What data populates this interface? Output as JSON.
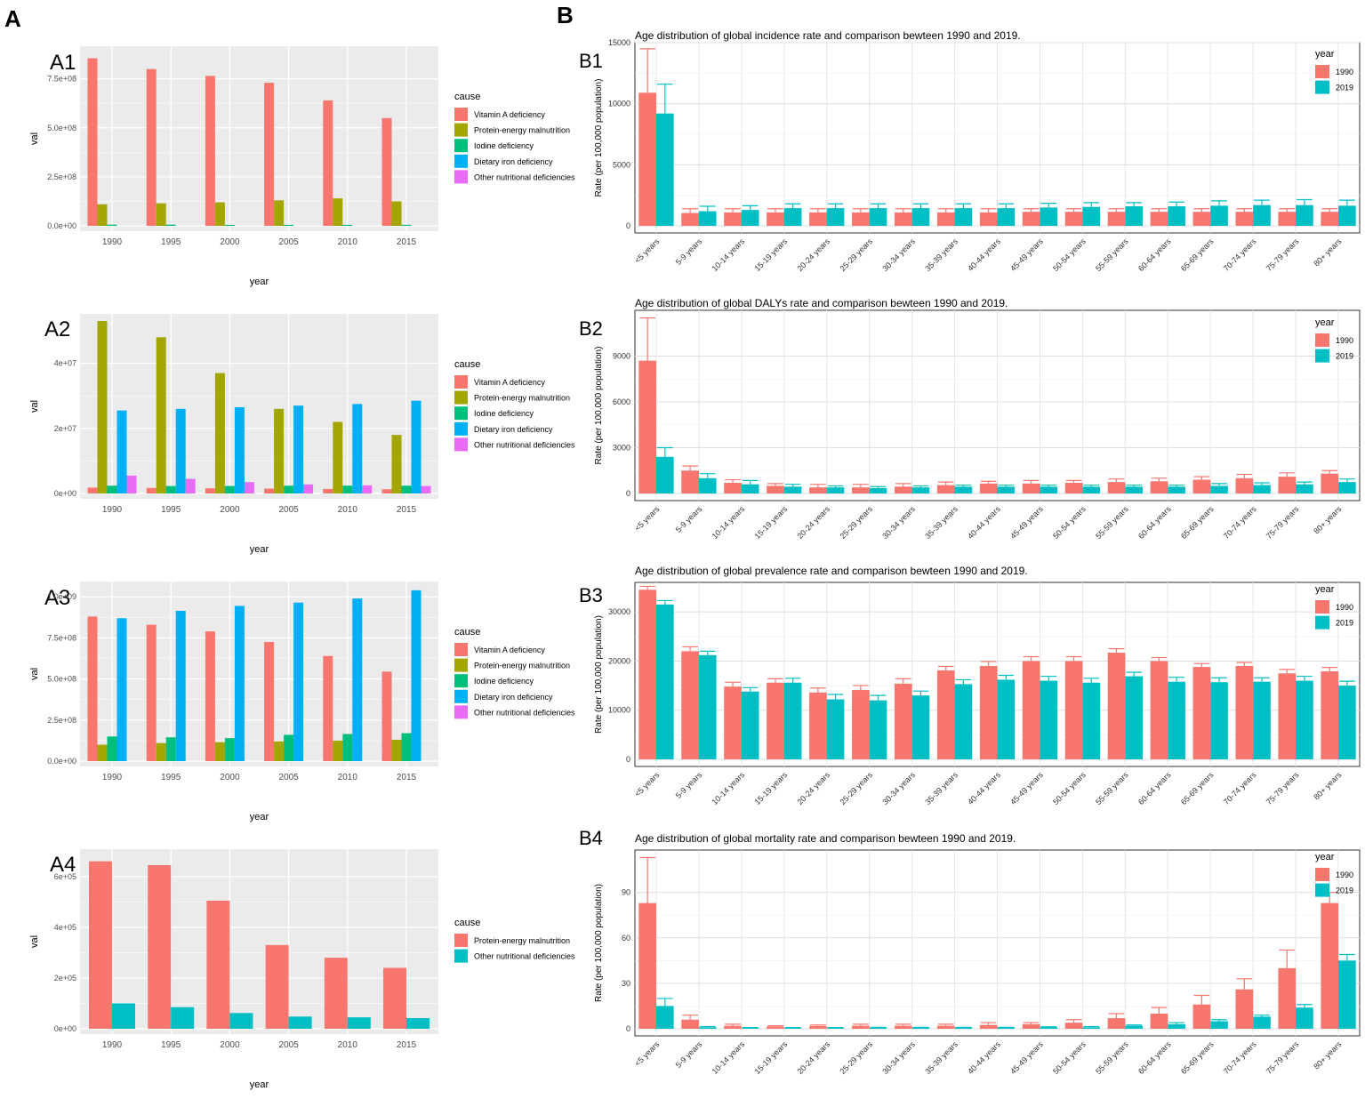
{
  "figure": {
    "label_a": "A",
    "label_b": "B"
  },
  "colors": {
    "vitamin_a": "#F8766D",
    "pem": "#A3A500",
    "iodine": "#00BF7D",
    "iron": "#00B0F6",
    "other": "#E76BF3",
    "y1990": "#F8766D",
    "y2019": "#00BFC4"
  },
  "chart_data": [
    {
      "id": "A1",
      "panel_label": "A1",
      "type": "bar",
      "categories": [
        "1990",
        "1995",
        "2000",
        "2005",
        "2010",
        "2015"
      ],
      "xlabel": "year",
      "ylabel": "val",
      "ylim": [
        0,
        880000000
      ],
      "yticks": [
        0,
        250000000,
        500000000,
        750000000
      ],
      "ytick_labels": [
        "0.0e+00",
        "2.5e+08",
        "5.0e+08",
        "7.5e+08"
      ],
      "legend_title": "cause",
      "legend_items": [
        {
          "label": "Vitamin A deficiency",
          "color": "#F8766D"
        },
        {
          "label": "Protein-energy malnutrition",
          "color": "#A3A500"
        },
        {
          "label": "Iodine deficiency",
          "color": "#00BF7D"
        },
        {
          "label": "Dietary iron deficiency",
          "color": "#00B0F6"
        },
        {
          "label": "Other nutritional deficiencies",
          "color": "#E76BF3"
        }
      ],
      "series": [
        {
          "name": "Vitamin A deficiency",
          "color": "#F8766D",
          "values": [
            855000000,
            800000000,
            765000000,
            730000000,
            640000000,
            550000000
          ]
        },
        {
          "name": "Protein-energy malnutrition",
          "color": "#A3A500",
          "values": [
            110000000,
            115000000,
            120000000,
            130000000,
            140000000,
            125000000
          ]
        },
        {
          "name": "Iodine deficiency",
          "color": "#00BF7D",
          "values": [
            6000000,
            6000000,
            5000000,
            5000000,
            5000000,
            5000000
          ]
        }
      ]
    },
    {
      "id": "A2",
      "panel_label": "A2",
      "type": "bar",
      "categories": [
        "1990",
        "1995",
        "2000",
        "2005",
        "2010",
        "2015"
      ],
      "xlabel": "year",
      "ylabel": "val",
      "ylim": [
        0,
        53000000
      ],
      "yticks": [
        0,
        20000000,
        40000000
      ],
      "ytick_labels": [
        "0e+00",
        "2e+07",
        "4e+07"
      ],
      "legend_title": "cause",
      "legend_items": [
        {
          "label": "Vitamin A deficiency",
          "color": "#F8766D"
        },
        {
          "label": "Protein-energy malnutrition",
          "color": "#A3A500"
        },
        {
          "label": "Iodine deficiency",
          "color": "#00BF7D"
        },
        {
          "label": "Dietary iron deficiency",
          "color": "#00B0F6"
        },
        {
          "label": "Other nutritional deficiencies",
          "color": "#E76BF3"
        }
      ],
      "series": [
        {
          "name": "Vitamin A deficiency",
          "color": "#F8766D",
          "values": [
            1800000,
            1700000,
            1600000,
            1500000,
            1400000,
            1300000
          ]
        },
        {
          "name": "Protein-energy malnutrition",
          "color": "#A3A500",
          "values": [
            53000000,
            48000000,
            37000000,
            26000000,
            22000000,
            18000000
          ]
        },
        {
          "name": "Iodine deficiency",
          "color": "#00BF7D",
          "values": [
            2400000,
            2300000,
            2300000,
            2400000,
            2400000,
            2400000
          ]
        },
        {
          "name": "Dietary iron deficiency",
          "color": "#00B0F6",
          "values": [
            25500000,
            26000000,
            26500000,
            27000000,
            27500000,
            28500000
          ]
        },
        {
          "name": "Other nutritional deficiencies",
          "color": "#E76BF3",
          "values": [
            5500000,
            4500000,
            3500000,
            2800000,
            2500000,
            2300000
          ]
        }
      ]
    },
    {
      "id": "A3",
      "panel_label": "A3",
      "type": "bar",
      "categories": [
        "1990",
        "1995",
        "2000",
        "2005",
        "2010",
        "2015"
      ],
      "xlabel": "year",
      "ylabel": "val",
      "ylim": [
        0,
        1050000000
      ],
      "yticks": [
        0,
        250000000,
        500000000,
        750000000,
        1000000000
      ],
      "ytick_labels": [
        "0.0e+00",
        "2.5e+08",
        "5.0e+08",
        "7.5e+08",
        "1.0e+09"
      ],
      "legend_title": "cause",
      "legend_items": [
        {
          "label": "Vitamin A deficiency",
          "color": "#F8766D"
        },
        {
          "label": "Protein-energy malnutrition",
          "color": "#A3A500"
        },
        {
          "label": "Iodine deficiency",
          "color": "#00BF7D"
        },
        {
          "label": "Dietary iron deficiency",
          "color": "#00B0F6"
        },
        {
          "label": "Other nutritional deficiencies",
          "color": "#E76BF3"
        }
      ],
      "series": [
        {
          "name": "Vitamin A deficiency",
          "color": "#F8766D",
          "values": [
            880000000,
            830000000,
            790000000,
            725000000,
            640000000,
            545000000
          ]
        },
        {
          "name": "Protein-energy malnutrition",
          "color": "#A3A500",
          "values": [
            100000000,
            110000000,
            115000000,
            120000000,
            125000000,
            130000000
          ]
        },
        {
          "name": "Iodine deficiency",
          "color": "#00BF7D",
          "values": [
            150000000,
            145000000,
            140000000,
            160000000,
            165000000,
            170000000
          ]
        },
        {
          "name": "Dietary iron deficiency",
          "color": "#00B0F6",
          "values": [
            870000000,
            915000000,
            945000000,
            965000000,
            990000000,
            1040000000
          ]
        }
      ]
    },
    {
      "id": "A4",
      "panel_label": "A4",
      "type": "bar",
      "categories": [
        "1990",
        "1995",
        "2000",
        "2005",
        "2010",
        "2015"
      ],
      "xlabel": "year",
      "ylabel": "val",
      "ylim": [
        0,
        680000
      ],
      "yticks": [
        0,
        200000,
        400000,
        600000
      ],
      "ytick_labels": [
        "0e+00",
        "2e+05",
        "4e+05",
        "6e+05"
      ],
      "legend_title": "cause",
      "legend_items": [
        {
          "label": "Protein-energy malnutrition",
          "color": "#F8766D"
        },
        {
          "label": "Other nutritional deficiencies",
          "color": "#00BFC4"
        }
      ],
      "series": [
        {
          "name": "Protein-energy malnutrition",
          "color": "#F8766D",
          "values": [
            660000,
            645000,
            505000,
            330000,
            280000,
            240000
          ]
        },
        {
          "name": "Other nutritional deficiencies",
          "color": "#00BFC4",
          "values": [
            100000,
            85000,
            62000,
            48000,
            45000,
            42000
          ]
        }
      ]
    },
    {
      "id": "B1",
      "panel_label": "B1",
      "type": "bar",
      "title": "Age distribution of global incidence rate and comparison bewteen 1990 and 2019.",
      "categories": [
        "<5 years",
        "5-9 years",
        "10-14 years",
        "15-19 years",
        "20-24 years",
        "25-29 years",
        "30-34 years",
        "35-39 years",
        "40-44 years",
        "45-49 years",
        "50-54 years",
        "55-59 years",
        "60-64 years",
        "65-69 years",
        "70-74 years",
        "75-79 years",
        "80+ years"
      ],
      "ylabel": "Rate (per 100,000 population)",
      "ylim": [
        0,
        15000
      ],
      "yticks": [
        0,
        5000,
        10000,
        15000
      ],
      "ytick_labels": [
        "0",
        "5000",
        "10000",
        "15000"
      ],
      "legend_title": "year",
      "legend_items": [
        {
          "label": "1990",
          "color": "#F8766D"
        },
        {
          "label": "2019",
          "color": "#00BFC4"
        }
      ],
      "series": [
        {
          "name": "1990",
          "color": "#F8766D",
          "values": [
            10900,
            1050,
            1100,
            1100,
            1100,
            1100,
            1100,
            1100,
            1100,
            1150,
            1150,
            1150,
            1150,
            1150,
            1150,
            1150,
            1150
          ],
          "upper": [
            14500,
            1400,
            1400,
            1400,
            1400,
            1400,
            1400,
            1400,
            1400,
            1400,
            1400,
            1400,
            1400,
            1400,
            1400,
            1400,
            1400
          ]
        },
        {
          "name": "2019",
          "color": "#00BFC4",
          "values": [
            9200,
            1200,
            1300,
            1450,
            1450,
            1450,
            1450,
            1450,
            1450,
            1500,
            1550,
            1600,
            1600,
            1650,
            1700,
            1700,
            1650
          ],
          "upper": [
            11600,
            1600,
            1650,
            1800,
            1800,
            1800,
            1800,
            1800,
            1800,
            1850,
            1900,
            1900,
            1950,
            2050,
            2100,
            2150,
            2100
          ]
        }
      ]
    },
    {
      "id": "B2",
      "panel_label": "B2",
      "type": "bar",
      "title": "Age distribution of global DALYs rate and comparison bewteen 1990 and 2019.",
      "categories": [
        "<5 years",
        "5-9 years",
        "10-14 years",
        "15-19 years",
        "20-24 years",
        "25-29 years",
        "30-34 years",
        "35-39 years",
        "40-44 years",
        "45-49 years",
        "50-54 years",
        "55-59 years",
        "60-64 years",
        "65-69 years",
        "70-74 years",
        "75-79 years",
        "80+ years"
      ],
      "ylabel": "Rate (per 100,000 population)",
      "ylim": [
        0,
        12000
      ],
      "yticks": [
        0,
        3000,
        6000,
        9000
      ],
      "ytick_labels": [
        "0",
        "3000",
        "6000",
        "9000"
      ],
      "legend_title": "year",
      "legend_items": [
        {
          "label": "1990",
          "color": "#F8766D"
        },
        {
          "label": "2019",
          "color": "#00BFC4"
        }
      ],
      "series": [
        {
          "name": "1990",
          "color": "#F8766D",
          "values": [
            8700,
            1500,
            700,
            500,
            400,
            400,
            450,
            550,
            650,
            650,
            700,
            750,
            800,
            900,
            1000,
            1100,
            1300
          ],
          "upper": [
            11500,
            1800,
            900,
            650,
            600,
            600,
            650,
            750,
            800,
            850,
            850,
            950,
            1000,
            1100,
            1250,
            1350,
            1500
          ]
        },
        {
          "name": "2019",
          "color": "#00BFC4",
          "values": [
            2400,
            1000,
            600,
            450,
            400,
            350,
            400,
            450,
            450,
            450,
            450,
            450,
            450,
            500,
            550,
            600,
            750
          ],
          "upper": [
            3000,
            1300,
            850,
            600,
            500,
            450,
            500,
            550,
            550,
            550,
            550,
            550,
            550,
            650,
            700,
            750,
            950
          ]
        }
      ]
    },
    {
      "id": "B3",
      "panel_label": "B3",
      "type": "bar",
      "title": "Age distribution of global prevalence rate and comparison bewteen 1990 and 2019.",
      "categories": [
        "<5 years",
        "5-9 years",
        "10-14 years",
        "15-19 years",
        "20-24 years",
        "25-29 years",
        "30-34 years",
        "35-39 years",
        "40-44 years",
        "45-49 years",
        "50-54 years",
        "55-59 years",
        "60-64 years",
        "65-69 years",
        "70-74 years",
        "75-79 years",
        "80+ years"
      ],
      "ylabel": "Rate (per 100,000 population)",
      "ylim": [
        0,
        36000
      ],
      "yticks": [
        0,
        10000,
        20000,
        30000
      ],
      "ytick_labels": [
        "0",
        "10000",
        "20000",
        "30000"
      ],
      "legend_title": "year",
      "legend_items": [
        {
          "label": "1990",
          "color": "#F8766D"
        },
        {
          "label": "2019",
          "color": "#00BFC4"
        }
      ],
      "series": [
        {
          "name": "1990",
          "color": "#F8766D",
          "values": [
            34500,
            22000,
            14800,
            15600,
            13600,
            14100,
            15400,
            18100,
            19000,
            20000,
            20000,
            21700,
            20000,
            18800,
            19000,
            17500,
            17900
          ],
          "upper": [
            35200,
            22900,
            15700,
            16400,
            14500,
            15000,
            16400,
            18900,
            19900,
            20900,
            20900,
            22500,
            20700,
            19500,
            19700,
            18300,
            18700
          ]
        },
        {
          "name": "2019",
          "color": "#00BFC4",
          "values": [
            31500,
            21200,
            13800,
            15600,
            12200,
            12000,
            13000,
            15300,
            16200,
            16000,
            15600,
            16900,
            15800,
            15700,
            15800,
            16000,
            15000
          ],
          "upper": [
            32300,
            22000,
            14600,
            16500,
            13200,
            13000,
            13900,
            16200,
            17100,
            16900,
            16500,
            17700,
            16700,
            16600,
            16600,
            16900,
            15900
          ]
        }
      ]
    },
    {
      "id": "B4",
      "panel_label": "B4",
      "type": "bar",
      "title": "Age distribution of global mortality rate and comparison bewteen 1990 and 2019.",
      "categories": [
        "<5 years",
        "5-9 years",
        "10-14 years",
        "15-19 years",
        "20-24 years",
        "25-29 years",
        "30-34 years",
        "35-39 years",
        "40-44 years",
        "45-49 years",
        "50-54 years",
        "55-59 years",
        "60-64 years",
        "65-69 years",
        "70-74 years",
        "75-79 years",
        "80+ years"
      ],
      "ylabel": "Rate (per 100,000 population)",
      "ylim": [
        0,
        118
      ],
      "yticks": [
        0,
        30,
        60,
        90
      ],
      "ytick_labels": [
        "0",
        "30",
        "60",
        "90"
      ],
      "legend_title": "year",
      "legend_items": [
        {
          "label": "1990",
          "color": "#F8766D"
        },
        {
          "label": "2019",
          "color": "#00BFC4"
        }
      ],
      "series": [
        {
          "name": "1990",
          "color": "#F8766D",
          "values": [
            83,
            6,
            2,
            1.5,
            1.8,
            2,
            2,
            2,
            2.5,
            3,
            4,
            7,
            10,
            16,
            26,
            40,
            83
          ],
          "upper": [
            113,
            9,
            3,
            2,
            2.5,
            3,
            3,
            3,
            4,
            4,
            6,
            10,
            14,
            22,
            33,
            52,
            90
          ]
        },
        {
          "name": "2019",
          "color": "#00BFC4",
          "values": [
            15,
            1,
            0.5,
            0.5,
            0.5,
            0.7,
            0.8,
            0.8,
            0.8,
            1,
            1,
            2,
            3,
            5,
            8,
            14,
            45
          ],
          "upper": [
            20,
            1.5,
            0.8,
            0.8,
            0.8,
            1,
            1,
            1,
            1,
            1.3,
            1.5,
            2.5,
            4,
            6,
            9,
            16,
            49
          ]
        }
      ]
    }
  ]
}
